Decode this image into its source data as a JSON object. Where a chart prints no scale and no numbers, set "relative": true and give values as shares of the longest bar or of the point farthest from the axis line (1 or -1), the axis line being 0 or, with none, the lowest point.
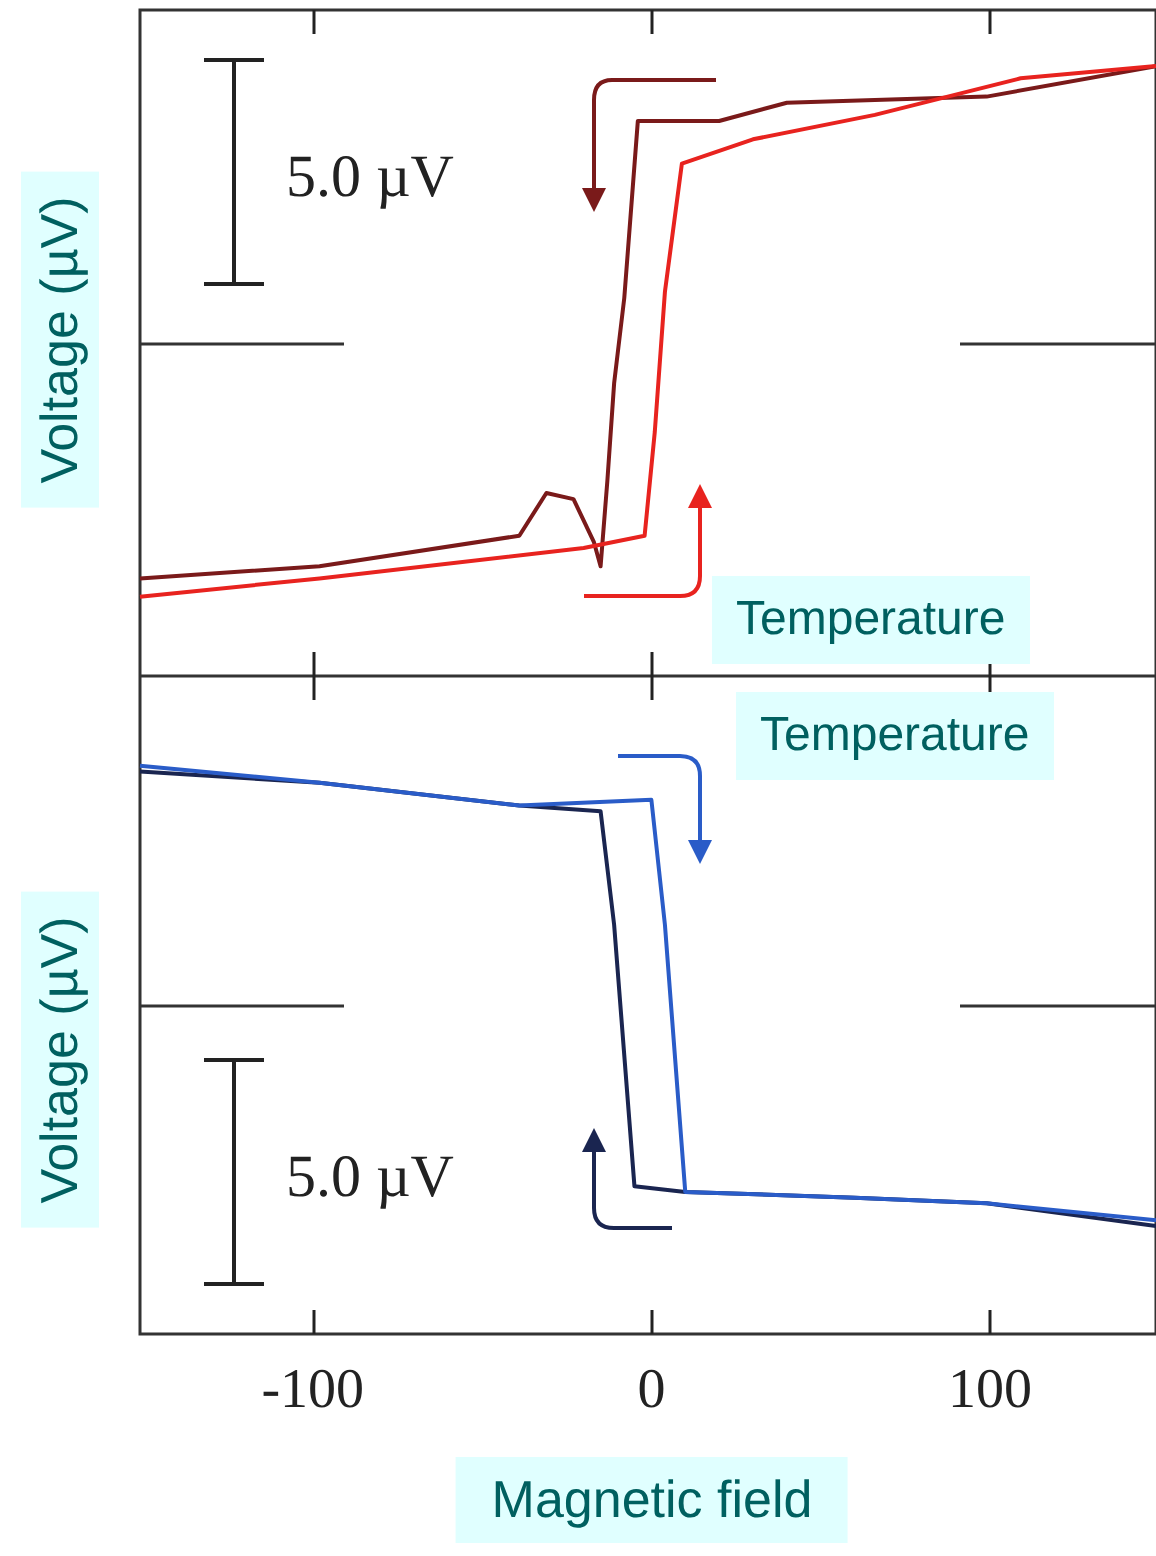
{
  "chart_data": [
    {
      "type": "line",
      "title": "Temperature",
      "ylabel": "Voltage (µV)",
      "relative": true,
      "xlim": [
        -151,
        149
      ],
      "xticks": [
        {
          "value": -100,
          "label": null
        },
        {
          "value": 0,
          "label": null
        },
        {
          "value": 100,
          "label": null
        }
      ],
      "tick_labels": false,
      "annotations": [
        "5.0 µV"
      ],
      "series": [
        {
          "color": "#7a1a1a",
          "x": [
            -151,
            -98,
            -39,
            -31,
            -23,
            -17,
            -15,
            -13,
            -11,
            -8,
            -4,
            20,
            40,
            99,
            149
          ],
          "values": [
            0.16,
            0.18,
            0.23,
            0.3,
            0.29,
            0.22,
            0.18,
            0.32,
            0.48,
            0.62,
            0.91,
            0.91,
            0.94,
            0.95,
            1.0
          ]
        },
        {
          "color": "#e8231f",
          "x": [
            -151,
            -98,
            -20,
            -2,
            1,
            4,
            9,
            30,
            66,
            109,
            149
          ],
          "values": [
            0.13,
            0.16,
            0.21,
            0.23,
            0.4,
            0.63,
            0.84,
            0.88,
            0.92,
            0.98,
            1.0
          ]
        }
      ]
    },
    {
      "type": "line",
      "title": "Temperature",
      "ylabel": "Voltage (µV)",
      "xlabel": "Magnetic field",
      "relative": true,
      "xlim": [
        -151,
        149
      ],
      "xticks": [
        -100,
        0,
        100
      ],
      "tick_labels": "x",
      "annotations": [
        "5.0 µV"
      ],
      "series": [
        {
          "color": "#1a2550",
          "x": [
            -151,
            -98,
            -39,
            -15,
            -11,
            -5,
            10,
            60,
            99,
            149
          ],
          "values": [
            0.99,
            0.97,
            0.93,
            0.92,
            0.72,
            0.26,
            0.25,
            0.24,
            0.23,
            0.19
          ]
        },
        {
          "color": "#2a5cc8",
          "x": [
            -151,
            -98,
            -39,
            0,
            4,
            10,
            60,
            99,
            149
          ],
          "values": [
            1.0,
            0.97,
            0.93,
            0.94,
            0.72,
            0.25,
            0.24,
            0.23,
            0.2
          ]
        }
      ]
    }
  ]
}
